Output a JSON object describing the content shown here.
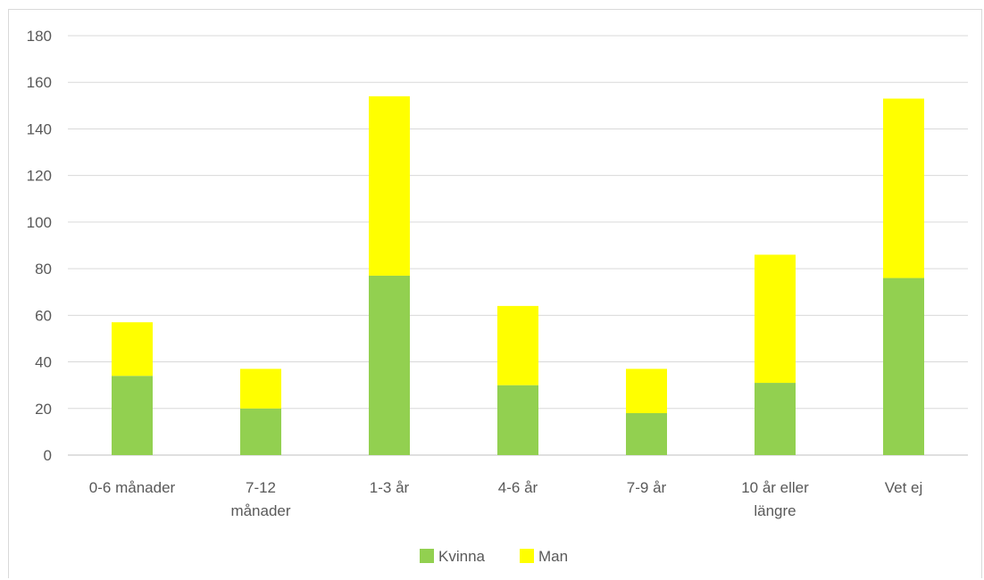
{
  "chart_data": {
    "type": "bar",
    "stacked": true,
    "categories": [
      [
        "0-6 månader"
      ],
      [
        "7-12",
        "månader"
      ],
      [
        "1-3 år"
      ],
      [
        "4-6 år"
      ],
      [
        "7-9 år"
      ],
      [
        "10 år eller",
        "längre"
      ],
      [
        "Vet ej"
      ]
    ],
    "series": [
      {
        "name": "Kvinna",
        "color": "#92d050",
        "values": [
          34,
          20,
          77,
          30,
          18,
          31,
          76
        ]
      },
      {
        "name": "Man",
        "color": "#ffff00",
        "values": [
          23,
          17,
          77,
          34,
          19,
          55,
          77
        ]
      }
    ],
    "ylim": [
      0,
      180
    ],
    "yticks": [
      0,
      20,
      40,
      60,
      80,
      100,
      120,
      140,
      160,
      180
    ],
    "grid": true,
    "legend": "bottom"
  }
}
